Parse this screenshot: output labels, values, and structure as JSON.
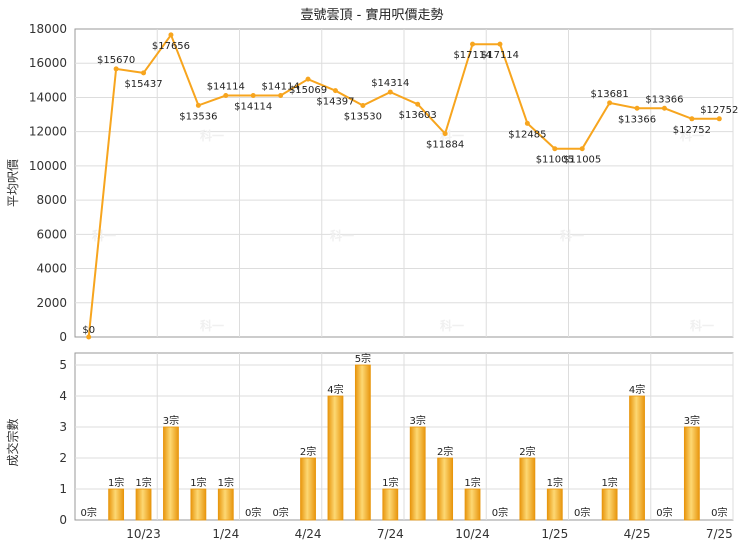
{
  "title": "壹號雲頂 - 實用呎價走勢",
  "watermark": "科一",
  "colors": {
    "line": "#F7A51E",
    "bar_edge": "#E8960E",
    "bar_light": "#FDD873",
    "bar_mid": "#F8B92A",
    "grid": "#DDDDDD",
    "frame": "#999999"
  },
  "chart_data": [
    {
      "type": "line",
      "ylabel": "平均呎價",
      "ylim": [
        0,
        18000
      ],
      "yticks": [
        0,
        2000,
        4000,
        6000,
        8000,
        10000,
        12000,
        14000,
        16000,
        18000
      ],
      "grid": true,
      "values": [
        0,
        15670,
        15437,
        17656,
        13536,
        14114,
        14114,
        14114,
        15069,
        14397,
        13530,
        14314,
        13603,
        11884,
        17114,
        17114,
        12485,
        11005,
        11005,
        13681,
        13366,
        13366,
        12752,
        12752
      ],
      "point_labels": [
        "$0",
        "$15670",
        "$15437",
        "$17656",
        "$13536",
        "$14114",
        "$14114",
        "$14114",
        "$15069",
        "$14397",
        "$13530",
        "$14314",
        "$13603",
        "$11884",
        "$17114",
        "$17114",
        "$12485",
        "$11005",
        "$11005",
        "$13681",
        "$13366",
        "$13366",
        "$12752",
        "$12752"
      ]
    },
    {
      "type": "bar",
      "ylabel": "成交宗數",
      "ylim": [
        0,
        5
      ],
      "yticks": [
        0,
        1,
        2,
        3,
        4,
        5
      ],
      "grid": true,
      "values": [
        0,
        1,
        1,
        3,
        1,
        1,
        0,
        0,
        2,
        4,
        5,
        1,
        3,
        2,
        1,
        0,
        2,
        1,
        0,
        1,
        4,
        0,
        3,
        0
      ],
      "bar_labels": [
        "0宗",
        "1宗",
        "1宗",
        "3宗",
        "1宗",
        "1宗",
        "0宗",
        "0宗",
        "2宗",
        "4宗",
        "5宗",
        "1宗",
        "3宗",
        "2宗",
        "1宗",
        "0宗",
        "2宗",
        "1宗",
        "0宗",
        "1宗",
        "4宗",
        "0宗",
        "3宗",
        "0宗"
      ],
      "x_tick_labels": [
        {
          "label": "10/23",
          "index": 2
        },
        {
          "label": "1/24",
          "index": 5
        },
        {
          "label": "4/24",
          "index": 8
        },
        {
          "label": "7/24",
          "index": 11
        },
        {
          "label": "10/24",
          "index": 14
        },
        {
          "label": "1/25",
          "index": 17
        },
        {
          "label": "4/25",
          "index": 20
        },
        {
          "label": "7/25",
          "index": 23
        }
      ]
    }
  ]
}
